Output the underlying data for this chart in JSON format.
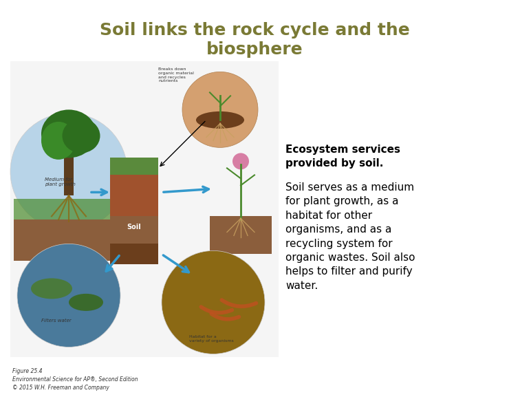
{
  "title_line1": "Soil links the rock cycle and the",
  "title_line2": "biosphere",
  "title_color": "#7a7a35",
  "title_fontsize": 18,
  "title_fontweight": "bold",
  "sidebar_header": "Ecosystem services\nprovided by soil.",
  "sidebar_body": "Soil serves as a medium\nfor plant growth, as a\nhabitat for other\norganisms, and as a\nrecycling system for\norganic wastes. Soil also\nhelps to filter and purify\nwater.",
  "sidebar_header_fontsize": 11,
  "sidebar_body_fontsize": 11,
  "background_color": "#ffffff",
  "footer_text": "Figure 25.4\nEnvironmental Science for AP®, Second Edition\n© 2015 W.H. Freeman and Company",
  "footer_fontsize": 5.5,
  "image_bg_colors": {
    "sky": "#b8d4e8",
    "soil_top": "#5a8a3c",
    "soil_mid": "#8b5e3c",
    "soil_deep": "#6b3e1c",
    "water": "#4a7a9b",
    "grass": "#4a8a2c"
  }
}
